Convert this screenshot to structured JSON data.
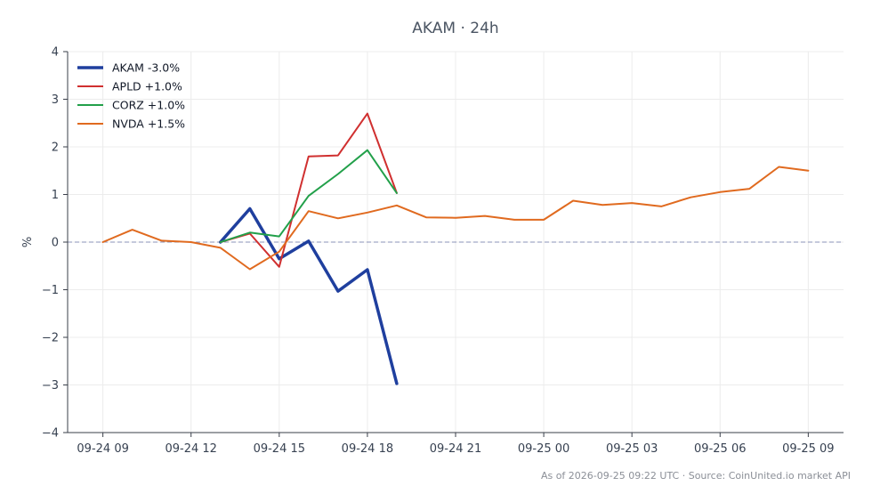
{
  "chart_data": {
    "type": "line",
    "title": "AKAM · 24h",
    "ylabel": "%",
    "xlabel": "",
    "ylim": [
      -4,
      4
    ],
    "yticks": [
      4,
      3,
      2,
      1,
      0,
      -1,
      -2,
      -3,
      -4
    ],
    "ytick_labels": [
      "4",
      "3",
      "2",
      "1",
      "0",
      "−1",
      "−2",
      "−3",
      "−4"
    ],
    "xlim": [
      "2026-09-24 07:48",
      "2026-09-25 10:12"
    ],
    "xticks": [
      "2026-09-24 09:00",
      "2026-09-24 12:00",
      "2026-09-24 15:00",
      "2026-09-24 18:00",
      "2026-09-24 21:00",
      "2026-09-25 00:00",
      "2026-09-25 03:00",
      "2026-09-25 06:00",
      "2026-09-25 09:00"
    ],
    "xtick_labels": [
      "09-24 09",
      "09-24 12",
      "09-24 15",
      "09-24 18",
      "09-24 21",
      "09-25 00",
      "09-25 03",
      "09-25 06",
      "09-25 09"
    ],
    "grid": true,
    "legend_position": "top-left",
    "zero_line": true,
    "series": [
      {
        "name": "AKAM -3.0%",
        "color": "#1f3f9e",
        "width": 3.5,
        "x": [
          "2026-09-24 13:00",
          "2026-09-24 14:00",
          "2026-09-24 15:00",
          "2026-09-24 16:00",
          "2026-09-24 17:00",
          "2026-09-24 18:00",
          "2026-09-24 19:00"
        ],
        "y": [
          0.0,
          0.7,
          -0.35,
          0.02,
          -1.03,
          -0.58,
          -2.97
        ]
      },
      {
        "name": "APLD +1.0%",
        "color": "#d03030",
        "width": 2,
        "x": [
          "2026-09-24 13:00",
          "2026-09-24 14:00",
          "2026-09-24 15:00",
          "2026-09-24 16:00",
          "2026-09-24 17:00",
          "2026-09-24 18:00",
          "2026-09-24 19:00"
        ],
        "y": [
          0.0,
          0.18,
          -0.52,
          1.8,
          1.82,
          2.7,
          1.03
        ]
      },
      {
        "name": "CORZ +1.0%",
        "color": "#22a04a",
        "width": 2,
        "x": [
          "2026-09-24 13:00",
          "2026-09-24 14:00",
          "2026-09-24 15:00",
          "2026-09-24 16:00",
          "2026-09-24 17:00",
          "2026-09-24 18:00",
          "2026-09-24 19:00"
        ],
        "y": [
          0.0,
          0.2,
          0.12,
          0.97,
          1.43,
          1.93,
          1.03
        ]
      },
      {
        "name": "NVDA +1.5%",
        "color": "#e06a1f",
        "width": 2,
        "x": [
          "2026-09-24 09:00",
          "2026-09-24 10:00",
          "2026-09-24 11:00",
          "2026-09-24 12:00",
          "2026-09-24 13:00",
          "2026-09-24 14:00",
          "2026-09-24 15:00",
          "2026-09-24 16:00",
          "2026-09-24 17:00",
          "2026-09-24 18:00",
          "2026-09-24 19:00",
          "2026-09-24 20:00",
          "2026-09-24 21:00",
          "2026-09-24 22:00",
          "2026-09-24 23:00",
          "2026-09-25 00:00",
          "2026-09-25 01:00",
          "2026-09-25 02:00",
          "2026-09-25 03:00",
          "2026-09-25 04:00",
          "2026-09-25 05:00",
          "2026-09-25 06:00",
          "2026-09-25 07:00",
          "2026-09-25 08:00",
          "2026-09-25 09:00"
        ],
        "y": [
          0.0,
          0.26,
          0.03,
          0.0,
          -0.12,
          -0.57,
          -0.2,
          0.65,
          0.5,
          0.62,
          0.77,
          0.52,
          0.51,
          0.55,
          0.47,
          0.47,
          0.87,
          0.78,
          0.82,
          0.75,
          0.94,
          1.05,
          1.12,
          1.58,
          1.5
        ]
      }
    ]
  },
  "footer": "As of 2026-09-25 09:22 UTC · Source: CoinUnited.io market API"
}
